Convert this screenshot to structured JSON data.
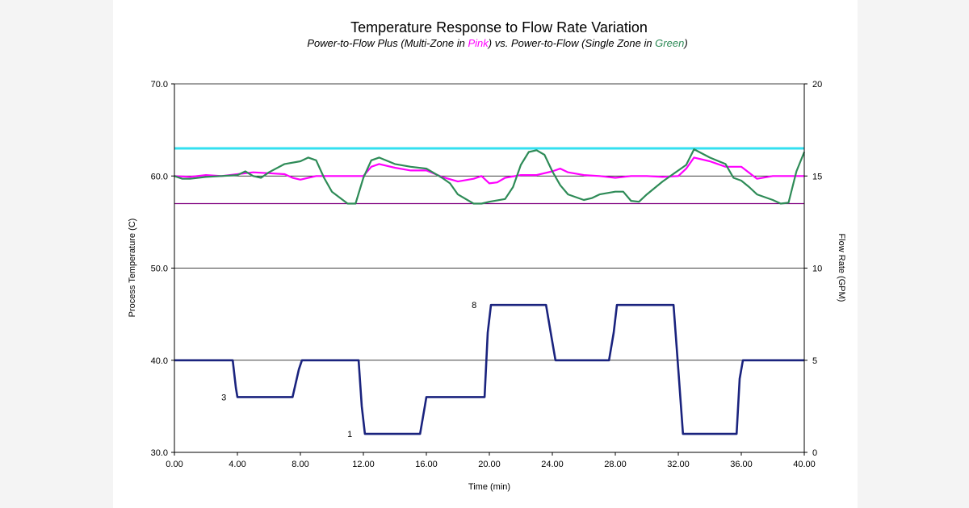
{
  "chart_data": {
    "type": "line",
    "title": "Temperature Response to Flow Rate Variation",
    "subtitle": {
      "prefix": "Power-to-Flow Plus (Multi-Zone in ",
      "pink_word": "Pink",
      "middle": ") vs. Power-to-Flow (Single Zone in ",
      "green_word": "Green",
      "suffix": ")"
    },
    "xlabel": "Time (min)",
    "ylabel_left": "Process Temperature (C)",
    "ylabel_right": "Flow Rate (GPM)",
    "xlim": [
      0,
      40
    ],
    "ylim_left": [
      30,
      70
    ],
    "ylim_right": [
      0,
      20
    ],
    "x_ticks": [
      "0.00",
      "4.00",
      "8.00",
      "12.00",
      "16.00",
      "20.00",
      "24.00",
      "28.00",
      "32.00",
      "36.00",
      "40.00"
    ],
    "y_ticks_left": [
      "30.0",
      "40.0",
      "50.0",
      "60.0",
      "70.0"
    ],
    "y_ticks_right": [
      "0",
      "5",
      "10",
      "15",
      "20"
    ],
    "reference_lines": [
      {
        "y": 63.0,
        "color": "#33e0f0"
      },
      {
        "y": 57.0,
        "color": "#800080"
      }
    ],
    "series": [
      {
        "axis": "left",
        "color": "#ff00ff",
        "x": [
          0,
          1,
          2,
          3,
          4,
          5,
          6,
          7,
          7.5,
          8,
          8.5,
          9,
          10,
          11,
          12,
          12.5,
          13,
          14,
          15,
          16,
          17,
          18,
          19,
          19.5,
          20,
          20.5,
          21,
          22,
          23,
          24,
          24.5,
          25,
          26,
          27,
          28,
          29,
          30,
          31,
          32,
          32.5,
          33,
          34,
          35,
          36,
          37,
          38,
          39,
          40
        ],
        "y": [
          60.0,
          59.9,
          60.1,
          60.0,
          60.2,
          60.4,
          60.3,
          60.2,
          59.8,
          59.6,
          59.8,
          60.0,
          60.0,
          60.0,
          60.0,
          61.0,
          61.3,
          60.9,
          60.6,
          60.6,
          59.9,
          59.4,
          59.7,
          60.0,
          59.2,
          59.3,
          59.8,
          60.1,
          60.1,
          60.5,
          60.8,
          60.4,
          60.1,
          60.0,
          59.8,
          60.0,
          60.0,
          59.9,
          60.0,
          60.8,
          62.0,
          61.6,
          61.0,
          61.0,
          59.7,
          60.0,
          60.0,
          60.0
        ]
      },
      {
        "axis": "left",
        "color": "#2e8b57",
        "x": [
          0,
          0.5,
          1,
          2,
          3,
          4,
          4.5,
          5,
          5.5,
          6,
          7,
          8,
          8.5,
          9,
          9.5,
          10,
          11,
          11.5,
          12,
          12.5,
          13,
          14,
          15,
          16,
          17,
          17.5,
          18,
          19,
          19.5,
          20,
          21,
          21.5,
          22,
          22.5,
          23,
          23.5,
          24,
          24.5,
          25,
          26,
          26.5,
          27,
          28,
          28.5,
          29,
          29.5,
          30,
          31,
          32,
          32.5,
          33,
          34,
          35,
          35.5,
          36,
          36.5,
          37,
          38,
          38.5,
          39,
          39.5,
          40
        ],
        "y": [
          60.0,
          59.7,
          59.7,
          59.9,
          60.0,
          60.1,
          60.5,
          60.0,
          59.8,
          60.4,
          61.3,
          61.6,
          62.0,
          61.7,
          59.8,
          58.3,
          57.0,
          57.0,
          59.8,
          61.7,
          62.0,
          61.3,
          61.0,
          60.8,
          59.8,
          59.2,
          58.0,
          57.0,
          57.0,
          57.2,
          57.5,
          58.8,
          61.2,
          62.6,
          62.8,
          62.3,
          60.5,
          59.0,
          58.0,
          57.4,
          57.6,
          58.0,
          58.3,
          58.3,
          57.3,
          57.2,
          58.0,
          59.4,
          60.6,
          61.2,
          62.9,
          62.0,
          61.3,
          59.8,
          59.5,
          58.8,
          58.0,
          57.4,
          57.0,
          57.1,
          60.5,
          62.6
        ]
      },
      {
        "axis": "right",
        "color": "#1a237e",
        "x": [
          0,
          3.7,
          3.9,
          4.0,
          7.5,
          7.9,
          8.1,
          11.7,
          11.9,
          12.1,
          15.6,
          15.9,
          16.0,
          19.7,
          19.9,
          20.1,
          23.6,
          23.9,
          24.2,
          27.6,
          27.9,
          28.1,
          31.7,
          32.0,
          32.3,
          35.7,
          35.9,
          36.1,
          40
        ],
        "y": [
          5,
          5,
          3.5,
          3,
          3,
          4.5,
          5,
          5,
          2.5,
          1,
          1,
          2.5,
          3,
          3,
          6.5,
          8,
          8,
          6.5,
          5,
          5,
          6.5,
          8,
          8,
          4.5,
          1,
          1,
          4,
          5,
          5
        ]
      }
    ],
    "data_labels": [
      {
        "text": "3",
        "x": 3.6,
        "y": 3.0
      },
      {
        "text": "1",
        "x": 11.6,
        "y": 1.0
      },
      {
        "text": "8",
        "x": 19.5,
        "y": 8.0
      }
    ]
  }
}
